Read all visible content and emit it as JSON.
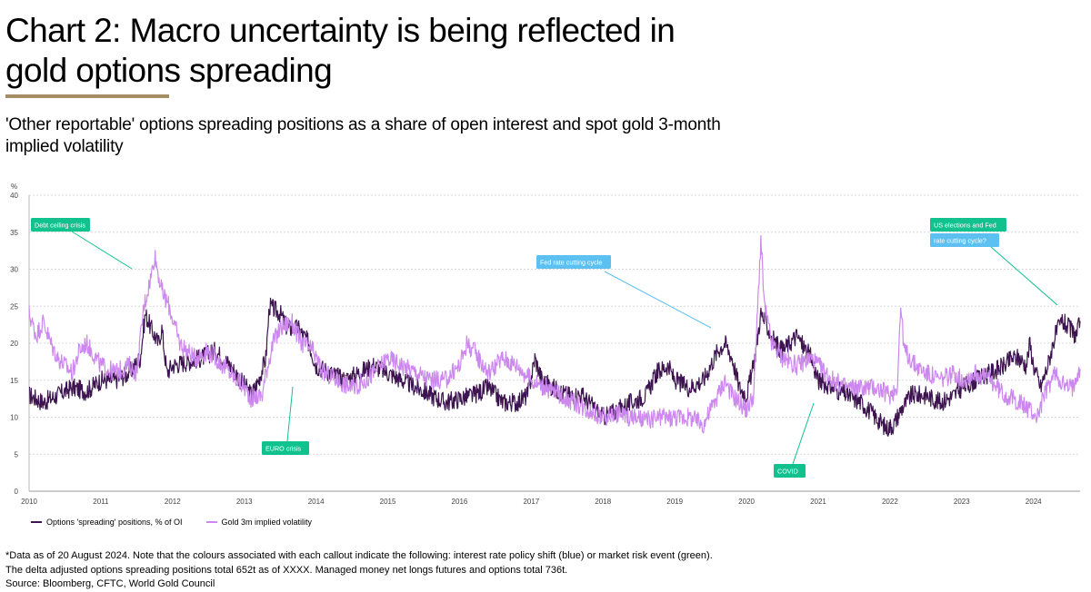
{
  "title": "Chart 2: Macro uncertainty is being reflected in gold options spreading",
  "subtitle": "'Other reportable' options spreading positions as a share of open interest and spot gold 3-month implied volatility",
  "colors": {
    "options_series": "#3d1450",
    "vol_series": "#cc88ee",
    "rate_callout": "#5cc0f0",
    "risk_callout": "#11c28f",
    "accent_rule": "#a58e65",
    "grid": "#d9d9d9"
  },
  "legend": {
    "options_label": "Options 'spreading' positions, % of OI",
    "vol_label": "Gold 3m implied volatility"
  },
  "footnotes": [
    "*Data as of 20 August 2024. Note that the colours associated with each callout indicate the following: interest rate policy shift (blue) or market risk event (green).",
    "The delta adjusted options spreading positions total 652t as of XXXX. Managed money net longs futures and options total 736t.",
    "Source: Bloomberg, CFTC, World Gold Council"
  ],
  "chart_data": {
    "type": "line",
    "ylabel": "%",
    "ylim": [
      0,
      40
    ],
    "yticks": [
      0,
      5,
      10,
      15,
      20,
      25,
      30,
      35,
      40
    ],
    "xlim": [
      2010.0,
      2024.65
    ],
    "xticks": [
      "2010",
      "2011",
      "2012",
      "2013",
      "2014",
      "2015",
      "2016",
      "2017",
      "2018",
      "2019",
      "2020",
      "2021",
      "2022",
      "2023",
      "2024"
    ],
    "grid": true,
    "legend_position": "bottom-left",
    "series": [
      {
        "name": "Options 'spreading' positions, % of OI",
        "color": "#3d1450",
        "points": [
          [
            2010.0,
            13
          ],
          [
            2010.2,
            12
          ],
          [
            2010.4,
            13
          ],
          [
            2010.6,
            14
          ],
          [
            2010.8,
            13.5
          ],
          [
            2011.0,
            15
          ],
          [
            2011.2,
            15
          ],
          [
            2011.4,
            16
          ],
          [
            2011.55,
            18
          ],
          [
            2011.62,
            24
          ],
          [
            2011.7,
            22
          ],
          [
            2011.8,
            20
          ],
          [
            2011.85,
            22
          ],
          [
            2011.92,
            16
          ],
          [
            2012.0,
            17
          ],
          [
            2012.2,
            17.5
          ],
          [
            2012.4,
            18
          ],
          [
            2012.6,
            19
          ],
          [
            2012.8,
            17
          ],
          [
            2012.95,
            15
          ],
          [
            2013.1,
            13
          ],
          [
            2013.2,
            15
          ],
          [
            2013.3,
            18
          ],
          [
            2013.35,
            25
          ],
          [
            2013.5,
            24
          ],
          [
            2013.6,
            22
          ],
          [
            2013.75,
            22
          ],
          [
            2013.9,
            20
          ],
          [
            2014.0,
            17
          ],
          [
            2014.2,
            16
          ],
          [
            2014.4,
            15
          ],
          [
            2014.6,
            16
          ],
          [
            2014.8,
            17
          ],
          [
            2015.0,
            16
          ],
          [
            2015.2,
            15
          ],
          [
            2015.4,
            14
          ],
          [
            2015.6,
            13
          ],
          [
            2015.8,
            12
          ],
          [
            2016.0,
            12.5
          ],
          [
            2016.2,
            13
          ],
          [
            2016.4,
            14
          ],
          [
            2016.6,
            12
          ],
          [
            2016.8,
            12
          ],
          [
            2016.95,
            13
          ],
          [
            2017.05,
            18
          ],
          [
            2017.15,
            15
          ],
          [
            2017.3,
            14
          ],
          [
            2017.5,
            13
          ],
          [
            2017.7,
            13
          ],
          [
            2017.9,
            11
          ],
          [
            2018.0,
            10
          ],
          [
            2018.2,
            11
          ],
          [
            2018.4,
            12
          ],
          [
            2018.6,
            13
          ],
          [
            2018.75,
            16
          ],
          [
            2018.9,
            17
          ],
          [
            2019.0,
            15
          ],
          [
            2019.2,
            14
          ],
          [
            2019.4,
            15
          ],
          [
            2019.5,
            17
          ],
          [
            2019.6,
            19
          ],
          [
            2019.7,
            20
          ],
          [
            2019.8,
            18
          ],
          [
            2019.9,
            14
          ],
          [
            2020.0,
            13
          ],
          [
            2020.1,
            17
          ],
          [
            2020.2,
            24
          ],
          [
            2020.3,
            22
          ],
          [
            2020.4,
            20
          ],
          [
            2020.5,
            19
          ],
          [
            2020.7,
            21
          ],
          [
            2020.9,
            18
          ],
          [
            2021.0,
            15
          ],
          [
            2021.2,
            14
          ],
          [
            2021.4,
            13
          ],
          [
            2021.6,
            12
          ],
          [
            2021.8,
            10
          ],
          [
            2021.95,
            8.5
          ],
          [
            2022.05,
            9
          ],
          [
            2022.15,
            11
          ],
          [
            2022.3,
            13
          ],
          [
            2022.5,
            13
          ],
          [
            2022.7,
            12
          ],
          [
            2022.9,
            13
          ],
          [
            2023.0,
            14
          ],
          [
            2023.2,
            15
          ],
          [
            2023.4,
            16
          ],
          [
            2023.6,
            17
          ],
          [
            2023.7,
            18
          ],
          [
            2023.8,
            18
          ],
          [
            2023.9,
            17
          ],
          [
            2023.95,
            20
          ],
          [
            2024.0,
            17
          ],
          [
            2024.1,
            14
          ],
          [
            2024.2,
            17
          ],
          [
            2024.3,
            21
          ],
          [
            2024.4,
            23
          ],
          [
            2024.5,
            22
          ],
          [
            2024.6,
            21
          ],
          [
            2024.65,
            23
          ]
        ]
      },
      {
        "name": "Gold 3m implied volatility",
        "color": "#cc88ee",
        "points": [
          [
            2010.0,
            24
          ],
          [
            2010.1,
            21
          ],
          [
            2010.2,
            23
          ],
          [
            2010.3,
            20
          ],
          [
            2010.4,
            18
          ],
          [
            2010.5,
            17
          ],
          [
            2010.6,
            16
          ],
          [
            2010.7,
            19
          ],
          [
            2010.8,
            20
          ],
          [
            2011.0,
            17
          ],
          [
            2011.2,
            16
          ],
          [
            2011.4,
            17
          ],
          [
            2011.5,
            16
          ],
          [
            2011.6,
            25
          ],
          [
            2011.7,
            29
          ],
          [
            2011.75,
            32
          ],
          [
            2011.85,
            27
          ],
          [
            2011.95,
            25
          ],
          [
            2012.1,
            20
          ],
          [
            2012.3,
            18
          ],
          [
            2012.5,
            19
          ],
          [
            2012.7,
            17
          ],
          [
            2012.9,
            15
          ],
          [
            2013.0,
            14
          ],
          [
            2013.1,
            12.5
          ],
          [
            2013.25,
            13
          ],
          [
            2013.3,
            16
          ],
          [
            2013.4,
            20
          ],
          [
            2013.5,
            22
          ],
          [
            2013.65,
            23
          ],
          [
            2013.8,
            20
          ],
          [
            2013.95,
            19
          ],
          [
            2014.1,
            16
          ],
          [
            2014.3,
            15
          ],
          [
            2014.5,
            14
          ],
          [
            2014.7,
            15
          ],
          [
            2014.9,
            17
          ],
          [
            2015.0,
            18
          ],
          [
            2015.2,
            17
          ],
          [
            2015.4,
            16
          ],
          [
            2015.6,
            15
          ],
          [
            2015.8,
            15
          ],
          [
            2016.0,
            17
          ],
          [
            2016.1,
            20
          ],
          [
            2016.2,
            19
          ],
          [
            2016.4,
            16
          ],
          [
            2016.6,
            18
          ],
          [
            2016.8,
            17
          ],
          [
            2017.0,
            15
          ],
          [
            2017.2,
            14
          ],
          [
            2017.4,
            13
          ],
          [
            2017.6,
            12
          ],
          [
            2017.8,
            11
          ],
          [
            2018.0,
            10
          ],
          [
            2018.2,
            10.5
          ],
          [
            2018.4,
            10
          ],
          [
            2018.6,
            9.5
          ],
          [
            2018.8,
            10
          ],
          [
            2019.0,
            10
          ],
          [
            2019.2,
            10
          ],
          [
            2019.4,
            9
          ],
          [
            2019.6,
            13
          ],
          [
            2019.7,
            15
          ],
          [
            2019.8,
            13
          ],
          [
            2019.9,
            12
          ],
          [
            2020.0,
            11
          ],
          [
            2020.1,
            13
          ],
          [
            2020.2,
            34
          ],
          [
            2020.25,
            25
          ],
          [
            2020.35,
            20
          ],
          [
            2020.5,
            18
          ],
          [
            2020.7,
            17
          ],
          [
            2020.9,
            18
          ],
          [
            2021.0,
            17
          ],
          [
            2021.2,
            15
          ],
          [
            2021.4,
            14
          ],
          [
            2021.6,
            14
          ],
          [
            2021.8,
            14
          ],
          [
            2022.0,
            13
          ],
          [
            2022.1,
            14
          ],
          [
            2022.15,
            25
          ],
          [
            2022.2,
            19
          ],
          [
            2022.35,
            17
          ],
          [
            2022.5,
            16
          ],
          [
            2022.7,
            15
          ],
          [
            2022.9,
            16
          ],
          [
            2023.0,
            15
          ],
          [
            2023.2,
            16
          ],
          [
            2023.4,
            15
          ],
          [
            2023.6,
            13
          ],
          [
            2023.8,
            12
          ],
          [
            2023.95,
            11
          ],
          [
            2024.05,
            10
          ],
          [
            2024.15,
            13
          ],
          [
            2024.3,
            16
          ],
          [
            2024.45,
            14
          ],
          [
            2024.55,
            14
          ],
          [
            2024.6,
            16
          ],
          [
            2024.65,
            16.5
          ]
        ]
      }
    ],
    "callouts": [
      {
        "text": "Debt ceiling crisis",
        "kind": "risk",
        "at": [
          2011.42,
          30.5
        ]
      },
      {
        "text": "EURO crisis",
        "kind": "risk",
        "at": [
          2013.65,
          14.5
        ]
      },
      {
        "text": "Fed rate cutting cycle",
        "kind": "rate",
        "at": [
          2019.5,
          22.2
        ]
      },
      {
        "text": "COVID",
        "kind": "risk",
        "at": [
          2020.9,
          12.2
        ]
      },
      {
        "text": "US elections and Fed",
        "kind": "risk",
        "at": [
          2024.35,
          25
        ]
      },
      {
        "text": "rate cutting cycle?",
        "kind": "rate",
        "at": [
          2024.35,
          25
        ]
      }
    ]
  }
}
